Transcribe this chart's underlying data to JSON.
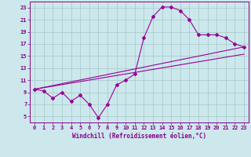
{
  "xlabel": "Windchill (Refroidissement éolien,°C)",
  "bg_color": "#cce8ec",
  "grid_color": "#aacccc",
  "line_color": "#990099",
  "xlim": [
    -0.5,
    23.5
  ],
  "ylim": [
    4,
    24
  ],
  "xticks": [
    0,
    1,
    2,
    3,
    4,
    5,
    6,
    7,
    8,
    9,
    10,
    11,
    12,
    13,
    14,
    15,
    16,
    17,
    18,
    19,
    20,
    21,
    22,
    23
  ],
  "yticks": [
    5,
    7,
    9,
    11,
    13,
    15,
    17,
    19,
    21,
    23
  ],
  "series1_x": [
    0,
    1,
    2,
    3,
    4,
    5,
    6,
    7,
    8,
    9,
    10,
    11,
    12,
    13,
    14,
    15,
    16,
    17,
    18,
    19,
    20,
    21,
    22,
    23
  ],
  "series1_y": [
    9.5,
    9.2,
    8.0,
    9.0,
    7.5,
    8.5,
    7.0,
    4.8,
    7.0,
    10.2,
    11.0,
    12.0,
    18.0,
    21.5,
    23.1,
    23.1,
    22.5,
    21.0,
    18.5,
    18.5,
    18.5,
    18.0,
    17.0,
    16.5
  ],
  "trend1_x": [
    0,
    23
  ],
  "trend1_y": [
    9.5,
    16.5
  ],
  "trend2_x": [
    0,
    23
  ],
  "trend2_y": [
    9.5,
    15.3
  ]
}
